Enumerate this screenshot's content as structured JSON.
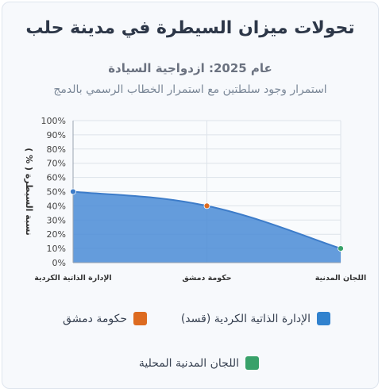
{
  "title": "تحولات ميزان السيطرة في مدينة حلب",
  "subtitle": "عام 2025: ازدواجية السيادة",
  "description": "استمرار وجود سلطتين مع استمرار الخطاب الرسمي بالدمج",
  "chart_data": {
    "type": "area",
    "categories": [
      "الإدارة الذاتية الكردية",
      "حكومة دمشق",
      "اللجان المدنية"
    ],
    "values": [
      50,
      40,
      10
    ],
    "ylabel": "نسبة السيطرة ( % )",
    "xlabel": "",
    "ylim": [
      0,
      100
    ],
    "yticks": [
      "0%",
      "10%",
      "20%",
      "30%",
      "40%",
      "50%",
      "60%",
      "70%",
      "80%",
      "90%",
      "100%"
    ],
    "grid": true,
    "fill_color": "#4a8bd6",
    "line_color": "#3d7cc9",
    "point_colors": [
      "#3d7cc9",
      "#dd6b20",
      "#38a169"
    ],
    "legend": [
      {
        "label": "الإدارة الذاتية الكردية (قسد)",
        "color": "#3182ce"
      },
      {
        "label": "حكومة دمشق",
        "color": "#dd6b20"
      },
      {
        "label": "اللجان المدنية المحلية",
        "color": "#38a169"
      }
    ],
    "legend_position": "bottom"
  }
}
